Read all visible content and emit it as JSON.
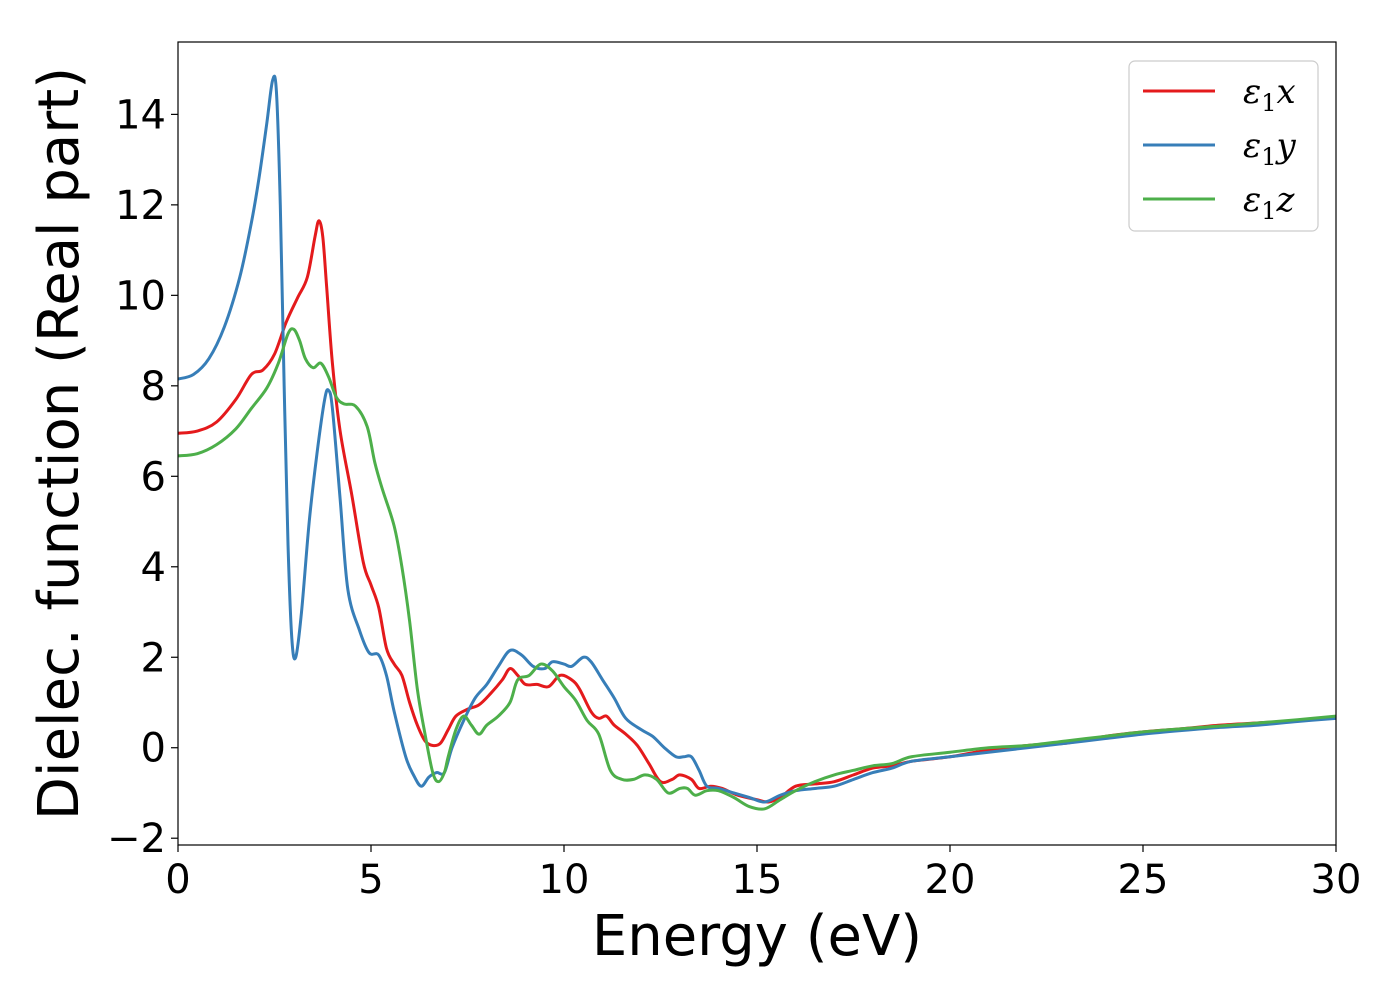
{
  "chart_data": {
    "type": "line",
    "xlabel": "Energy (eV)",
    "ylabel": "Dielec. function (Real part)",
    "xlim": [
      0,
      30
    ],
    "ylim": [
      -2.15,
      15.6
    ],
    "xticks": [
      0,
      5,
      10,
      15,
      20,
      25,
      30
    ],
    "yticks": [
      -2,
      0,
      2,
      4,
      6,
      8,
      10,
      12,
      14
    ],
    "grid": false,
    "legend_position": "top-right",
    "series": [
      {
        "name": "ε1x",
        "label_base": "ε",
        "label_sub": "1",
        "label_tail": "x",
        "color": "#e41a1c",
        "points": [
          [
            0,
            6.95
          ],
          [
            0.5,
            7.0
          ],
          [
            1.0,
            7.2
          ],
          [
            1.5,
            7.7
          ],
          [
            1.9,
            8.25
          ],
          [
            2.2,
            8.35
          ],
          [
            2.5,
            8.7
          ],
          [
            2.8,
            9.4
          ],
          [
            3.1,
            9.95
          ],
          [
            3.35,
            10.4
          ],
          [
            3.55,
            11.3
          ],
          [
            3.65,
            11.65
          ],
          [
            3.75,
            11.3
          ],
          [
            3.85,
            10.2
          ],
          [
            4.0,
            8.5
          ],
          [
            4.2,
            7.0
          ],
          [
            4.5,
            5.6
          ],
          [
            4.8,
            4.1
          ],
          [
            5.0,
            3.6
          ],
          [
            5.2,
            3.1
          ],
          [
            5.4,
            2.2
          ],
          [
            5.6,
            1.85
          ],
          [
            5.8,
            1.6
          ],
          [
            6.0,
            1.0
          ],
          [
            6.2,
            0.5
          ],
          [
            6.4,
            0.15
          ],
          [
            6.6,
            0.05
          ],
          [
            6.8,
            0.1
          ],
          [
            7.0,
            0.4
          ],
          [
            7.2,
            0.7
          ],
          [
            7.5,
            0.85
          ],
          [
            7.8,
            0.95
          ],
          [
            8.1,
            1.2
          ],
          [
            8.4,
            1.5
          ],
          [
            8.6,
            1.75
          ],
          [
            8.8,
            1.6
          ],
          [
            9.0,
            1.4
          ],
          [
            9.3,
            1.4
          ],
          [
            9.6,
            1.35
          ],
          [
            9.9,
            1.6
          ],
          [
            10.2,
            1.5
          ],
          [
            10.4,
            1.3
          ],
          [
            10.7,
            0.8
          ],
          [
            10.9,
            0.65
          ],
          [
            11.1,
            0.7
          ],
          [
            11.3,
            0.5
          ],
          [
            11.6,
            0.3
          ],
          [
            11.9,
            0.05
          ],
          [
            12.2,
            -0.35
          ],
          [
            12.5,
            -0.75
          ],
          [
            12.8,
            -0.7
          ],
          [
            13.0,
            -0.6
          ],
          [
            13.3,
            -0.7
          ],
          [
            13.5,
            -0.9
          ],
          [
            13.8,
            -0.85
          ],
          [
            14.1,
            -0.9
          ],
          [
            14.5,
            -1.05
          ],
          [
            15.0,
            -1.15
          ],
          [
            15.3,
            -1.2
          ],
          [
            15.6,
            -1.1
          ],
          [
            16.0,
            -0.85
          ],
          [
            16.5,
            -0.8
          ],
          [
            17.0,
            -0.75
          ],
          [
            17.5,
            -0.6
          ],
          [
            18.0,
            -0.45
          ],
          [
            18.5,
            -0.4
          ],
          [
            19.0,
            -0.3
          ],
          [
            20.0,
            -0.2
          ],
          [
            21.0,
            -0.05
          ],
          [
            22.0,
            0.05
          ],
          [
            23.0,
            0.1
          ],
          [
            24.0,
            0.25
          ],
          [
            25.0,
            0.35
          ],
          [
            26.0,
            0.42
          ],
          [
            27.0,
            0.5
          ],
          [
            28.0,
            0.55
          ],
          [
            29.0,
            0.6
          ],
          [
            30.0,
            0.68
          ]
        ]
      },
      {
        "name": "ε1y",
        "label_base": "ε",
        "label_sub": "1",
        "label_tail": "y",
        "color": "#377eb8",
        "points": [
          [
            0,
            8.15
          ],
          [
            0.4,
            8.25
          ],
          [
            0.8,
            8.6
          ],
          [
            1.2,
            9.3
          ],
          [
            1.6,
            10.4
          ],
          [
            1.9,
            11.6
          ],
          [
            2.1,
            12.6
          ],
          [
            2.3,
            13.8
          ],
          [
            2.45,
            14.75
          ],
          [
            2.55,
            14.5
          ],
          [
            2.65,
            12.0
          ],
          [
            2.75,
            8.0
          ],
          [
            2.85,
            4.5
          ],
          [
            2.95,
            2.4
          ],
          [
            3.05,
            2.0
          ],
          [
            3.2,
            3.0
          ],
          [
            3.4,
            5.0
          ],
          [
            3.6,
            6.5
          ],
          [
            3.8,
            7.7
          ],
          [
            3.9,
            7.9
          ],
          [
            4.0,
            7.5
          ],
          [
            4.2,
            5.5
          ],
          [
            4.4,
            3.5
          ],
          [
            4.7,
            2.6
          ],
          [
            4.95,
            2.1
          ],
          [
            5.2,
            2.05
          ],
          [
            5.4,
            1.6
          ],
          [
            5.6,
            0.8
          ],
          [
            5.9,
            -0.2
          ],
          [
            6.1,
            -0.6
          ],
          [
            6.3,
            -0.85
          ],
          [
            6.5,
            -0.65
          ],
          [
            6.7,
            -0.55
          ],
          [
            6.9,
            -0.55
          ],
          [
            7.1,
            0.0
          ],
          [
            7.4,
            0.6
          ],
          [
            7.7,
            1.1
          ],
          [
            8.0,
            1.4
          ],
          [
            8.3,
            1.8
          ],
          [
            8.6,
            2.15
          ],
          [
            8.9,
            2.05
          ],
          [
            9.2,
            1.8
          ],
          [
            9.5,
            1.75
          ],
          [
            9.7,
            1.9
          ],
          [
            10.0,
            1.85
          ],
          [
            10.2,
            1.8
          ],
          [
            10.5,
            2.0
          ],
          [
            10.7,
            1.9
          ],
          [
            11.0,
            1.5
          ],
          [
            11.3,
            1.1
          ],
          [
            11.6,
            0.65
          ],
          [
            12.0,
            0.4
          ],
          [
            12.3,
            0.25
          ],
          [
            12.6,
            0.0
          ],
          [
            12.9,
            -0.2
          ],
          [
            13.1,
            -0.2
          ],
          [
            13.3,
            -0.2
          ],
          [
            13.5,
            -0.5
          ],
          [
            13.7,
            -0.85
          ],
          [
            14.0,
            -0.9
          ],
          [
            14.4,
            -1.0
          ],
          [
            14.8,
            -1.1
          ],
          [
            15.2,
            -1.2
          ],
          [
            15.6,
            -1.05
          ],
          [
            16.0,
            -0.95
          ],
          [
            16.5,
            -0.9
          ],
          [
            17.0,
            -0.85
          ],
          [
            17.5,
            -0.7
          ],
          [
            18.0,
            -0.55
          ],
          [
            18.5,
            -0.45
          ],
          [
            19.0,
            -0.3
          ],
          [
            20.0,
            -0.2
          ],
          [
            21.0,
            -0.1
          ],
          [
            22.0,
            0.0
          ],
          [
            23.0,
            0.1
          ],
          [
            24.0,
            0.2
          ],
          [
            25.0,
            0.3
          ],
          [
            26.0,
            0.38
          ],
          [
            27.0,
            0.45
          ],
          [
            28.0,
            0.5
          ],
          [
            29.0,
            0.58
          ],
          [
            30.0,
            0.65
          ]
        ]
      },
      {
        "name": "ε1z",
        "label_base": "ε",
        "label_sub": "1",
        "label_tail": "z",
        "color": "#4daf4a",
        "points": [
          [
            0,
            6.45
          ],
          [
            0.5,
            6.5
          ],
          [
            1.0,
            6.7
          ],
          [
            1.5,
            7.05
          ],
          [
            1.9,
            7.5
          ],
          [
            2.3,
            7.95
          ],
          [
            2.6,
            8.5
          ],
          [
            2.85,
            9.15
          ],
          [
            3.0,
            9.25
          ],
          [
            3.15,
            9.0
          ],
          [
            3.3,
            8.6
          ],
          [
            3.5,
            8.4
          ],
          [
            3.7,
            8.5
          ],
          [
            3.9,
            8.2
          ],
          [
            4.1,
            7.75
          ],
          [
            4.3,
            7.6
          ],
          [
            4.6,
            7.55
          ],
          [
            4.9,
            7.1
          ],
          [
            5.1,
            6.3
          ],
          [
            5.3,
            5.7
          ],
          [
            5.6,
            4.9
          ],
          [
            5.8,
            4.0
          ],
          [
            6.0,
            2.8
          ],
          [
            6.2,
            1.3
          ],
          [
            6.4,
            0.3
          ],
          [
            6.6,
            -0.55
          ],
          [
            6.75,
            -0.75
          ],
          [
            6.9,
            -0.55
          ],
          [
            7.0,
            -0.2
          ],
          [
            7.2,
            0.4
          ],
          [
            7.4,
            0.7
          ],
          [
            7.6,
            0.5
          ],
          [
            7.8,
            0.3
          ],
          [
            8.0,
            0.5
          ],
          [
            8.3,
            0.7
          ],
          [
            8.6,
            1.0
          ],
          [
            8.8,
            1.5
          ],
          [
            9.1,
            1.6
          ],
          [
            9.4,
            1.85
          ],
          [
            9.7,
            1.7
          ],
          [
            10.0,
            1.35
          ],
          [
            10.3,
            1.05
          ],
          [
            10.6,
            0.6
          ],
          [
            10.9,
            0.3
          ],
          [
            11.2,
            -0.5
          ],
          [
            11.5,
            -0.7
          ],
          [
            11.8,
            -0.7
          ],
          [
            12.1,
            -0.6
          ],
          [
            12.4,
            -0.7
          ],
          [
            12.7,
            -1.0
          ],
          [
            13.0,
            -0.9
          ],
          [
            13.2,
            -0.9
          ],
          [
            13.4,
            -1.05
          ],
          [
            13.7,
            -0.95
          ],
          [
            14.0,
            -0.95
          ],
          [
            14.4,
            -1.1
          ],
          [
            14.8,
            -1.3
          ],
          [
            15.2,
            -1.35
          ],
          [
            15.6,
            -1.15
          ],
          [
            16.0,
            -0.95
          ],
          [
            16.5,
            -0.75
          ],
          [
            17.0,
            -0.6
          ],
          [
            17.5,
            -0.5
          ],
          [
            18.0,
            -0.4
          ],
          [
            18.5,
            -0.35
          ],
          [
            19.0,
            -0.2
          ],
          [
            20.0,
            -0.1
          ],
          [
            21.0,
            0.0
          ],
          [
            22.0,
            0.05
          ],
          [
            23.0,
            0.15
          ],
          [
            24.0,
            0.25
          ],
          [
            25.0,
            0.35
          ],
          [
            26.0,
            0.42
          ],
          [
            27.0,
            0.48
          ],
          [
            28.0,
            0.55
          ],
          [
            29.0,
            0.62
          ],
          [
            30.0,
            0.7
          ]
        ]
      }
    ]
  }
}
